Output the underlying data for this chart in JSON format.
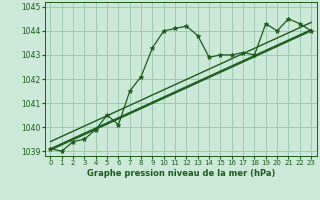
{
  "title": "Graphe pression niveau de la mer (hPa)",
  "bg_color": "#cce8d8",
  "grid_color": "#99ccb0",
  "line_color": "#1a5c1a",
  "marker_color": "#1a5c1a",
  "x_values": [
    0,
    1,
    2,
    3,
    4,
    5,
    6,
    7,
    8,
    9,
    10,
    11,
    12,
    13,
    14,
    15,
    16,
    17,
    18,
    19,
    20,
    21,
    22,
    23
  ],
  "y_values": [
    1039.1,
    1039.0,
    1039.4,
    1039.5,
    1039.9,
    1040.5,
    1040.1,
    1041.5,
    1042.1,
    1043.3,
    1044.0,
    1044.1,
    1044.2,
    1043.8,
    1042.9,
    1043.0,
    1043.0,
    1043.1,
    1043.0,
    1044.3,
    1044.0,
    1044.5,
    1044.3,
    1044.0
  ],
  "ylim": [
    1038.8,
    1045.2
  ],
  "xlim": [
    -0.5,
    23.5
  ],
  "yticks": [
    1039,
    1040,
    1041,
    1042,
    1043,
    1044,
    1045
  ],
  "xticks": [
    0,
    1,
    2,
    3,
    4,
    5,
    6,
    7,
    8,
    9,
    10,
    11,
    12,
    13,
    14,
    15,
    16,
    17,
    18,
    19,
    20,
    21,
    22,
    23
  ],
  "trend_line1_y": [
    1039.1,
    1044.05
  ],
  "trend_line2_y": [
    1039.4,
    1044.35
  ],
  "trend_line3_y": [
    1039.05,
    1044.0
  ],
  "trend_x": [
    0,
    23
  ]
}
